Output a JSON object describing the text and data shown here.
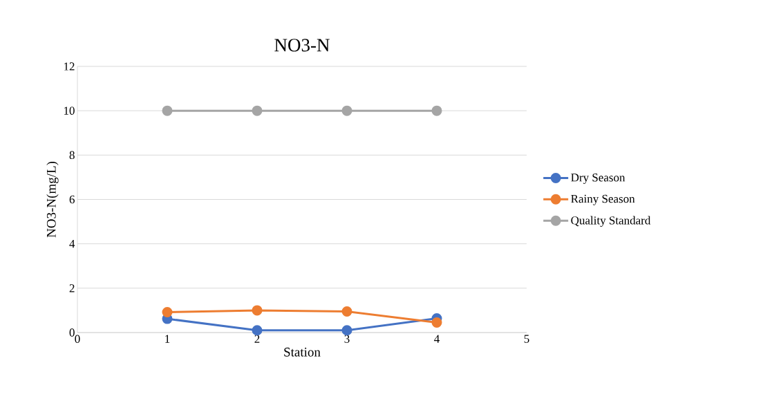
{
  "chart_data": {
    "type": "line",
    "title": "NO3-N",
    "xlabel": "Station",
    "ylabel": "NO3-N(mg/L)",
    "x": [
      1,
      2,
      3,
      4
    ],
    "series": [
      {
        "name": "Dry Season",
        "color": "#4472c4",
        "values": [
          0.62,
          0.1,
          0.1,
          0.64
        ]
      },
      {
        "name": "Rainy Season",
        "color": "#ed7d31",
        "values": [
          0.92,
          1.0,
          0.95,
          0.45
        ]
      },
      {
        "name": "Quality Standard",
        "color": "#a5a5a5",
        "values": [
          10,
          10,
          10,
          10
        ]
      }
    ],
    "xlim": [
      0,
      5
    ],
    "xticks": [
      0,
      1,
      2,
      3,
      4,
      5
    ],
    "ylim": [
      0,
      12
    ],
    "yticks": [
      0,
      2,
      4,
      6,
      8,
      10,
      12
    ],
    "grid": "y",
    "legend": "right",
    "marker": "circle",
    "line_style": "solid"
  }
}
